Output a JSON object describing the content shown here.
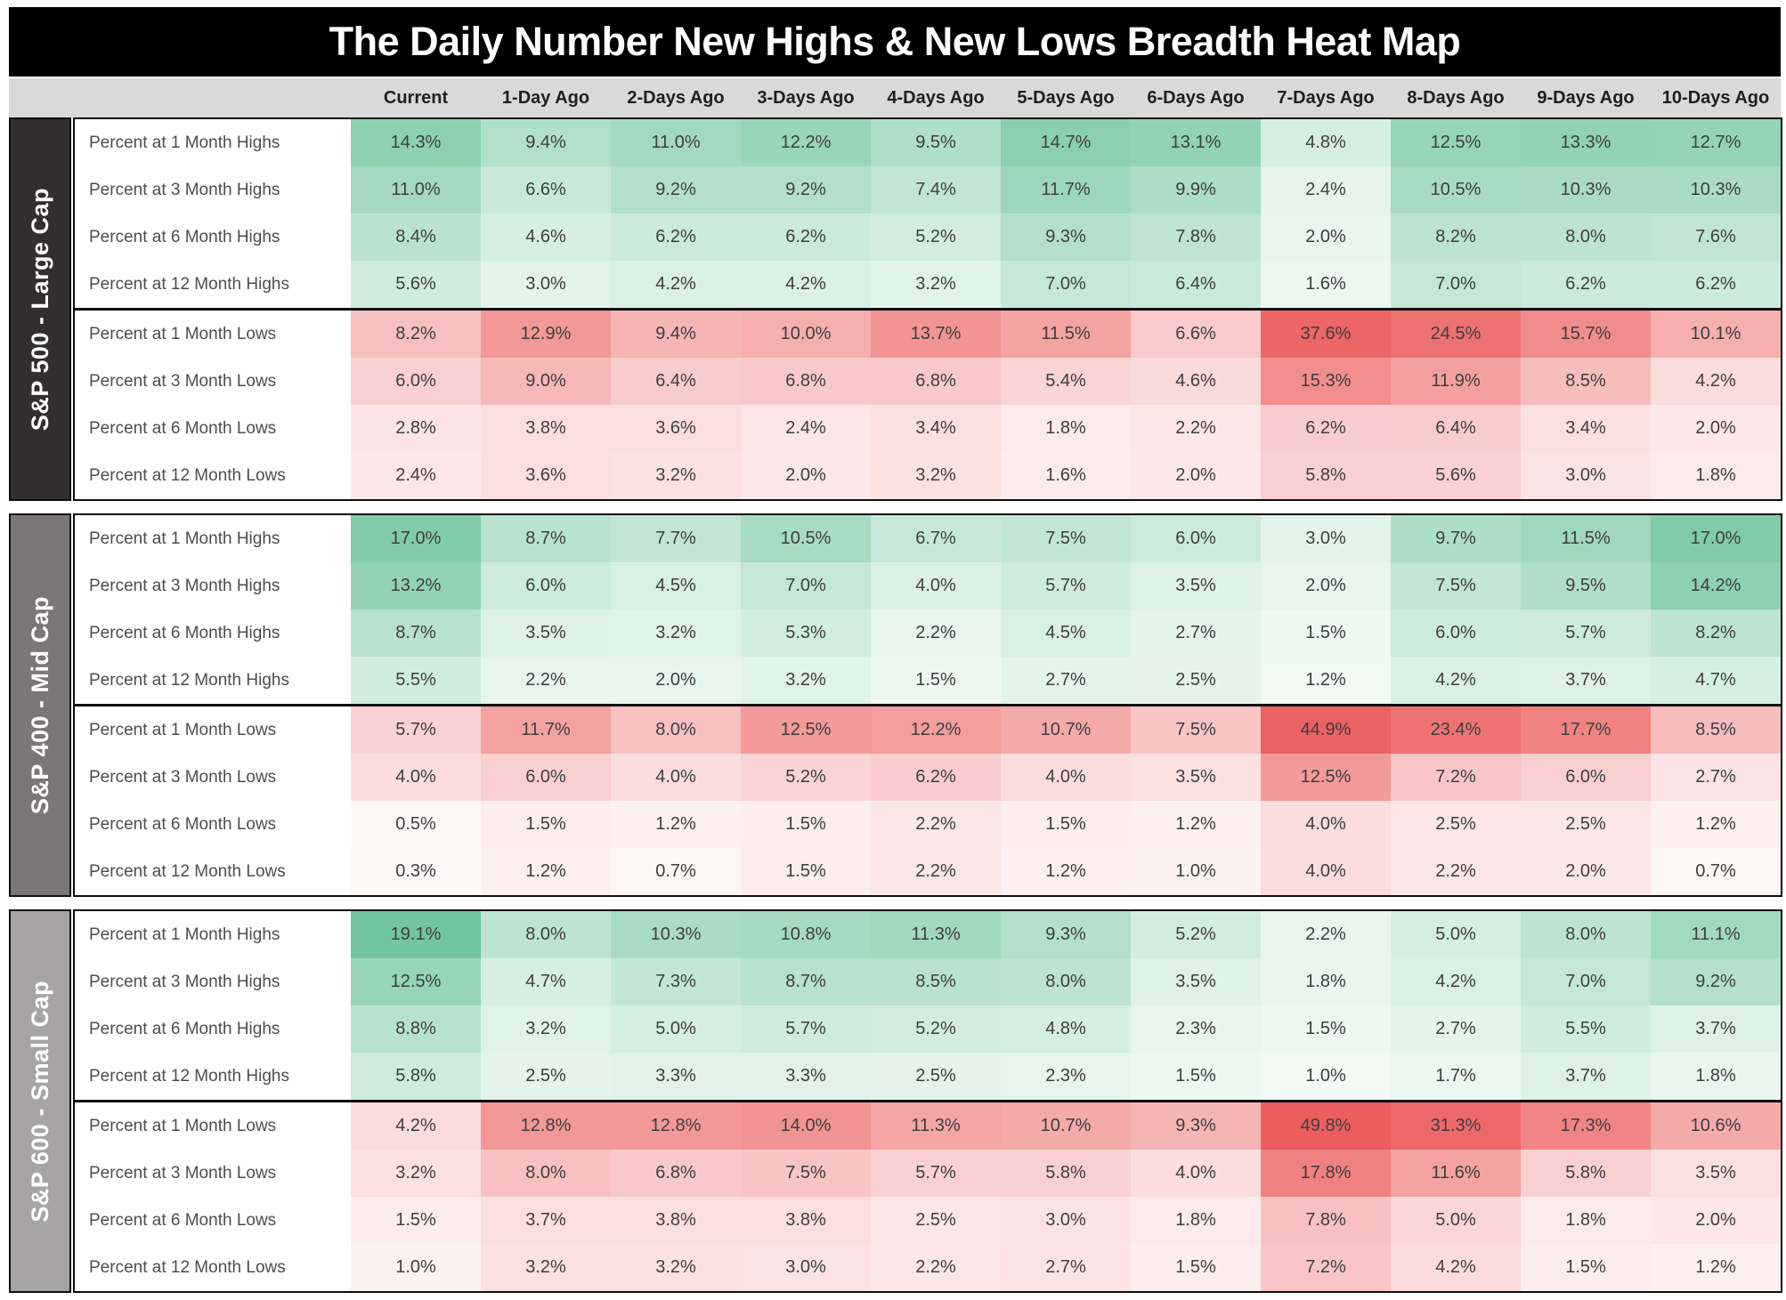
{
  "chart_data": {
    "type": "heatmap",
    "title": "The Daily Number New Highs & New Lows Breadth Heat Map",
    "columns": [
      "Current",
      "1-Day Ago",
      "2-Days Ago",
      "3-Days Ago",
      "4-Days Ago",
      "5-Days Ago",
      "6-Days Ago",
      "7-Days Ago",
      "8-Days Ago",
      "9-Days Ago",
      "10-Days Ago"
    ],
    "value_unit": "%",
    "legend": "green = percent at new highs, red = percent at new lows, darker = larger value",
    "colors": {
      "high_max": "#57bb8a",
      "low_max": "#ec5e5e",
      "cell_min": "#ffffff",
      "title_bg": "#000000",
      "title_text": "#ffffff",
      "header_bg": "#d9d9d9",
      "header_text": "#1f1f1f",
      "row_label_text": "#4d4d4d",
      "cell_text": "#3e3e3e",
      "border": "#0e0e0e"
    },
    "sections": [
      {
        "label": "S&P 500 - Large Cap",
        "slug": "sp500-large-cap",
        "sidebar_bg": "#322e2f",
        "rows": [
          {
            "label": "Percent at 1 Month Highs",
            "type": "high",
            "values": [
              14.3,
              9.4,
              11.0,
              12.2,
              9.5,
              14.7,
              13.1,
              4.8,
              12.5,
              13.3,
              12.7
            ]
          },
          {
            "label": "Percent at 3 Month Highs",
            "type": "high",
            "values": [
              11.0,
              6.6,
              9.2,
              9.2,
              7.4,
              11.7,
              9.9,
              2.4,
              10.5,
              10.3,
              10.3
            ]
          },
          {
            "label": "Percent at 6 Month Highs",
            "type": "high",
            "values": [
              8.4,
              4.6,
              6.2,
              6.2,
              5.2,
              9.3,
              7.8,
              2.0,
              8.2,
              8.0,
              7.6
            ]
          },
          {
            "label": "Percent at 12 Month Highs",
            "type": "high",
            "values": [
              5.6,
              3.0,
              4.2,
              4.2,
              3.2,
              7.0,
              6.4,
              1.6,
              7.0,
              6.2,
              6.2
            ]
          },
          {
            "label": "Percent at 1 Month Lows",
            "type": "low",
            "values": [
              8.2,
              12.9,
              9.4,
              10.0,
              13.7,
              11.5,
              6.6,
              37.6,
              24.5,
              15.7,
              10.1
            ]
          },
          {
            "label": "Percent at 3 Month Lows",
            "type": "low",
            "values": [
              6.0,
              9.0,
              6.4,
              6.8,
              6.8,
              5.4,
              4.6,
              15.3,
              11.9,
              8.5,
              4.2
            ]
          },
          {
            "label": "Percent at 6 Month Lows",
            "type": "low",
            "values": [
              2.8,
              3.8,
              3.6,
              2.4,
              3.4,
              1.8,
              2.2,
              6.2,
              6.4,
              3.4,
              2.0
            ]
          },
          {
            "label": "Percent at 12 Month Lows",
            "type": "low",
            "values": [
              2.4,
              3.6,
              3.2,
              2.0,
              3.2,
              1.6,
              2.0,
              5.8,
              5.6,
              3.0,
              1.8
            ]
          }
        ]
      },
      {
        "label": "S&P 400 - Mid Cap",
        "slug": "sp400-mid-cap",
        "sidebar_bg": "#7b7778",
        "rows": [
          {
            "label": "Percent at 1 Month Highs",
            "type": "high",
            "values": [
              17.0,
              8.7,
              7.7,
              10.5,
              6.7,
              7.5,
              6.0,
              3.0,
              9.7,
              11.5,
              17.0
            ]
          },
          {
            "label": "Percent at 3 Month Highs",
            "type": "high",
            "values": [
              13.2,
              6.0,
              4.5,
              7.0,
              4.0,
              5.7,
              3.5,
              2.0,
              7.5,
              9.5,
              14.2
            ]
          },
          {
            "label": "Percent at 6 Month Highs",
            "type": "high",
            "values": [
              8.7,
              3.5,
              3.2,
              5.3,
              2.2,
              4.5,
              2.7,
              1.5,
              6.0,
              5.7,
              8.2
            ]
          },
          {
            "label": "Percent at 12 Month Highs",
            "type": "high",
            "values": [
              5.5,
              2.2,
              2.0,
              3.2,
              1.5,
              2.7,
              2.5,
              1.2,
              4.2,
              3.7,
              4.7
            ]
          },
          {
            "label": "Percent at 1 Month Lows",
            "type": "low",
            "values": [
              5.7,
              11.7,
              8.0,
              12.5,
              12.2,
              10.7,
              7.5,
              44.9,
              23.4,
              17.7,
              8.5
            ]
          },
          {
            "label": "Percent at 3 Month Lows",
            "type": "low",
            "values": [
              4.0,
              6.0,
              4.0,
              5.2,
              6.2,
              4.0,
              3.5,
              12.5,
              7.2,
              6.0,
              2.7
            ]
          },
          {
            "label": "Percent at 6 Month Lows",
            "type": "low",
            "values": [
              0.5,
              1.5,
              1.2,
              1.5,
              2.2,
              1.5,
              1.2,
              4.0,
              2.5,
              2.5,
              1.2
            ]
          },
          {
            "label": "Percent at 12 Month Lows",
            "type": "low",
            "values": [
              0.3,
              1.2,
              0.7,
              1.5,
              2.2,
              1.2,
              1.0,
              4.0,
              2.2,
              2.0,
              0.7
            ]
          }
        ]
      },
      {
        "label": "S&P 600 - Small Cap",
        "slug": "sp600-small-cap",
        "sidebar_bg": "#a7a4a5",
        "rows": [
          {
            "label": "Percent at 1 Month Highs",
            "type": "high",
            "values": [
              19.1,
              8.0,
              10.3,
              10.8,
              11.3,
              9.3,
              5.2,
              2.2,
              5.0,
              8.0,
              11.1
            ]
          },
          {
            "label": "Percent at 3 Month Highs",
            "type": "high",
            "values": [
              12.5,
              4.7,
              7.3,
              8.7,
              8.5,
              8.0,
              3.5,
              1.8,
              4.2,
              7.0,
              9.2
            ]
          },
          {
            "label": "Percent at 6 Month Highs",
            "type": "high",
            "values": [
              8.8,
              3.2,
              5.0,
              5.7,
              5.2,
              4.8,
              2.3,
              1.5,
              2.7,
              5.5,
              3.7
            ]
          },
          {
            "label": "Percent at 12 Month Highs",
            "type": "high",
            "values": [
              5.8,
              2.5,
              3.3,
              3.3,
              2.5,
              2.3,
              1.5,
              1.0,
              1.7,
              3.7,
              1.8
            ]
          },
          {
            "label": "Percent at 1 Month Lows",
            "type": "low",
            "values": [
              4.2,
              12.8,
              12.8,
              14.0,
              11.3,
              10.7,
              9.3,
              49.8,
              31.3,
              17.3,
              10.6
            ]
          },
          {
            "label": "Percent at 3 Month Lows",
            "type": "low",
            "values": [
              3.2,
              8.0,
              6.8,
              7.5,
              5.7,
              5.8,
              4.0,
              17.8,
              11.6,
              5.8,
              3.5
            ]
          },
          {
            "label": "Percent at 6 Month Lows",
            "type": "low",
            "values": [
              1.5,
              3.7,
              3.8,
              3.8,
              2.5,
              3.0,
              1.8,
              7.8,
              5.0,
              1.8,
              2.0
            ]
          },
          {
            "label": "Percent at 12 Month Lows",
            "type": "low",
            "values": [
              1.0,
              3.2,
              3.2,
              3.0,
              2.2,
              2.7,
              1.5,
              7.2,
              4.2,
              1.5,
              1.2
            ]
          }
        ]
      }
    ]
  }
}
